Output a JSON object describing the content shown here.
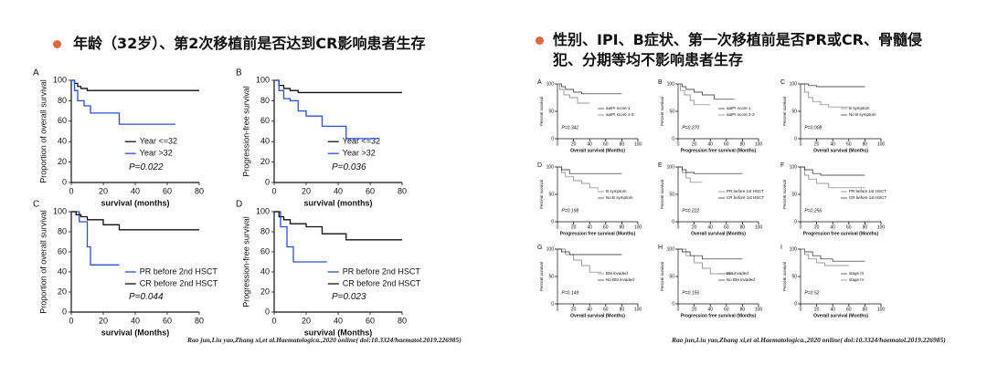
{
  "headings": [
    "年龄（32岁）、第2次移植前是否达到CR影响患者生存",
    "性别、IPI、B症状、第一次移植前是否PR或CR、骨髓侵犯、分期等均不影响患者生存"
  ],
  "citations": [
    "Rao jun,Liu yao,Zhang xi,et al.Haematologica.,2020 online( doi:10.3324/haematol.2019.226985)",
    "Rao jun,Liu yao,Zhang xi,et al.Haematologica.,2020 online( doi:10.3324/haematol.2019.226985)"
  ],
  "chart_data": [
    {
      "type": "step",
      "panel": "A",
      "ylabel": "Proportion of overall survival",
      "xlabel": "survival (months)",
      "annotation": "P=0.022",
      "xlim": [
        0,
        80
      ],
      "xticks": [
        0,
        20,
        40,
        60,
        80
      ],
      "ylim": [
        0,
        100
      ],
      "yticks": [
        0,
        20,
        40,
        60,
        80,
        100
      ],
      "series": [
        {
          "name": "Year <=32",
          "color": "#111111",
          "x": [
            0,
            2,
            4,
            6,
            10,
            80
          ],
          "values": [
            100,
            97,
            94,
            92,
            90,
            90
          ]
        },
        {
          "name": "Year >32",
          "color": "#2b4fd8",
          "x": [
            0,
            2,
            4,
            8,
            12,
            30,
            65
          ],
          "values": [
            100,
            90,
            80,
            75,
            68,
            57,
            57
          ]
        }
      ]
    },
    {
      "type": "step",
      "panel": "B",
      "ylabel": "Progression-free survival",
      "xlabel": "survival (months)",
      "annotation": "P=0.036",
      "xlim": [
        0,
        80
      ],
      "xticks": [
        0,
        20,
        40,
        60,
        80
      ],
      "ylim": [
        0,
        100
      ],
      "yticks": [
        0,
        20,
        40,
        60,
        80,
        100
      ],
      "series": [
        {
          "name": "Year <=32",
          "color": "#111111",
          "x": [
            0,
            3,
            6,
            10,
            15,
            80
          ],
          "values": [
            100,
            95,
            92,
            90,
            88,
            88
          ]
        },
        {
          "name": "Year >32",
          "color": "#2b4fd8",
          "x": [
            0,
            3,
            6,
            10,
            15,
            20,
            30,
            45,
            65
          ],
          "values": [
            100,
            90,
            82,
            80,
            70,
            65,
            55,
            43,
            43
          ]
        }
      ]
    },
    {
      "type": "step",
      "panel": "C",
      "ylabel": "Proportion of overall survival",
      "xlabel": "survival (Months)",
      "annotation": "P=0.044",
      "xlim": [
        0,
        80
      ],
      "xticks": [
        0,
        20,
        40,
        60,
        80
      ],
      "ylim": [
        0,
        100
      ],
      "yticks": [
        0,
        20,
        40,
        60,
        80,
        100
      ],
      "series": [
        {
          "name": "PR before 2nd HSCT",
          "color": "#2b4fd8",
          "x": [
            0,
            5,
            10,
            12,
            30
          ],
          "values": [
            100,
            90,
            65,
            47,
            47
          ]
        },
        {
          "name": "CR before 2nd HSCT",
          "color": "#111111",
          "x": [
            0,
            3,
            6,
            10,
            20,
            30,
            80
          ],
          "values": [
            100,
            97,
            95,
            92,
            87,
            82,
            82
          ]
        }
      ]
    },
    {
      "type": "step",
      "panel": "D",
      "ylabel": "Progression-free survival",
      "xlabel": "survival (Months)",
      "annotation": "P=0.023",
      "xlim": [
        0,
        80
      ],
      "xticks": [
        0,
        20,
        40,
        60,
        80
      ],
      "ylim": [
        0,
        100
      ],
      "yticks": [
        0,
        20,
        40,
        60,
        80,
        100
      ],
      "series": [
        {
          "name": "PR before 2nd HSCT",
          "color": "#2b4fd8",
          "x": [
            0,
            4,
            8,
            12,
            33
          ],
          "values": [
            100,
            85,
            65,
            50,
            50
          ]
        },
        {
          "name": "CR before 2nd HSCT",
          "color": "#111111",
          "x": [
            0,
            3,
            6,
            10,
            20,
            30,
            45,
            80
          ],
          "values": [
            100,
            95,
            92,
            88,
            85,
            78,
            72,
            72
          ]
        }
      ]
    },
    {
      "type": "step",
      "panel": "A",
      "ylabel": "Percent survival",
      "xlabel": "Overall survival (Months)",
      "annotation": "P=0.341",
      "xlim": [
        0,
        100
      ],
      "xticks": [
        0,
        20,
        40,
        60,
        80,
        100
      ],
      "ylim": [
        0,
        100
      ],
      "yticks": [
        0,
        50,
        100
      ],
      "series": [
        {
          "name": "aaIPI score 1",
          "color": "#222222",
          "x": [
            0,
            5,
            10,
            20,
            30,
            80
          ],
          "values": [
            100,
            95,
            90,
            85,
            82,
            82
          ]
        },
        {
          "name": "aaIPI score 2-3",
          "color": "#777777",
          "x": [
            0,
            3,
            8,
            15,
            25,
            40
          ],
          "values": [
            100,
            90,
            80,
            75,
            65,
            65
          ]
        }
      ]
    },
    {
      "type": "step",
      "panel": "B",
      "ylabel": "Percent survival",
      "xlabel": "Progression free survival (Months)",
      "annotation": "P=0.270",
      "xlim": [
        0,
        100
      ],
      "xticks": [
        0,
        20,
        40,
        60,
        80,
        100
      ],
      "ylim": [
        0,
        100
      ],
      "yticks": [
        0,
        50,
        100
      ],
      "series": [
        {
          "name": "aaIPI score 1",
          "color": "#222222",
          "x": [
            0,
            5,
            10,
            20,
            30,
            45,
            70
          ],
          "values": [
            100,
            95,
            90,
            85,
            80,
            72,
            72
          ]
        },
        {
          "name": "aaIPI score 2-3",
          "color": "#777777",
          "x": [
            0,
            3,
            8,
            15,
            20,
            40
          ],
          "values": [
            100,
            88,
            80,
            70,
            62,
            62
          ]
        }
      ]
    },
    {
      "type": "step",
      "panel": "C",
      "ylabel": "Percent survival",
      "xlabel": "Overall survival (Months)",
      "annotation": "P=0.008",
      "xlim": [
        0,
        100
      ],
      "xticks": [
        0,
        20,
        40,
        60,
        80,
        100
      ],
      "ylim": [
        0,
        100
      ],
      "yticks": [
        0,
        50,
        100
      ],
      "series": [
        {
          "name": "B symptom",
          "color": "#777777",
          "x": [
            0,
            5,
            10,
            15,
            25,
            35,
            60
          ],
          "values": [
            100,
            85,
            75,
            68,
            62,
            58,
            58
          ]
        },
        {
          "name": "No B symptom",
          "color": "#222222",
          "x": [
            0,
            10,
            20,
            80
          ],
          "values": [
            100,
            97,
            95,
            95
          ]
        }
      ]
    },
    {
      "type": "step",
      "panel": "D",
      "ylabel": "Percent survival",
      "xlabel": "Progression free survival (Months)",
      "annotation": "P=0.198",
      "xlim": [
        0,
        100
      ],
      "xticks": [
        0,
        20,
        40,
        60,
        80,
        100
      ],
      "ylim": [
        0,
        100
      ],
      "yticks": [
        0,
        50,
        100
      ],
      "series": [
        {
          "name": "B symptom",
          "color": "#777777",
          "x": [
            0,
            5,
            10,
            20,
            30,
            40,
            50
          ],
          "values": [
            100,
            90,
            82,
            75,
            70,
            62,
            58
          ]
        },
        {
          "name": "No B symptom",
          "color": "#222222",
          "x": [
            0,
            5,
            15,
            80
          ],
          "values": [
            100,
            95,
            88,
            88
          ]
        }
      ]
    },
    {
      "type": "step",
      "panel": "E",
      "ylabel": "Percent survival",
      "xlabel": "Overall survival (Months)",
      "annotation": "P=0.222",
      "xlim": [
        0,
        100
      ],
      "xticks": [
        0,
        20,
        40,
        60,
        80,
        100
      ],
      "ylim": [
        0,
        100
      ],
      "yticks": [
        0,
        50,
        100
      ],
      "series": [
        {
          "name": "PR before 1st HSCT",
          "color": "#777777",
          "x": [
            0,
            5,
            10,
            15,
            30
          ],
          "values": [
            100,
            90,
            80,
            72,
            72
          ]
        },
        {
          "name": "CR before 1st HSCT",
          "color": "#222222",
          "x": [
            0,
            5,
            10,
            20,
            80
          ],
          "values": [
            100,
            95,
            90,
            88,
            88
          ]
        }
      ]
    },
    {
      "type": "step",
      "panel": "F",
      "ylabel": "Percent survival",
      "xlabel": "Progression free survival (Months)",
      "annotation": "P=0.256",
      "xlim": [
        0,
        100
      ],
      "xticks": [
        0,
        20,
        40,
        60,
        80,
        100
      ],
      "ylim": [
        0,
        100
      ],
      "yticks": [
        0,
        50,
        100
      ],
      "series": [
        {
          "name": "PR before 1st HSCT",
          "color": "#777777",
          "x": [
            0,
            5,
            10,
            20,
            35,
            80
          ],
          "values": [
            100,
            85,
            78,
            70,
            62,
            62
          ]
        },
        {
          "name": "CR before 1st HSCT",
          "color": "#222222",
          "x": [
            0,
            5,
            15,
            25,
            80
          ],
          "values": [
            100,
            95,
            88,
            85,
            85
          ]
        }
      ]
    },
    {
      "type": "step",
      "panel": "G",
      "ylabel": "Percent survival",
      "xlabel": "Overall survival (Months)",
      "annotation": "P=0.149",
      "xlim": [
        0,
        100
      ],
      "xticks": [
        0,
        20,
        40,
        60,
        80,
        100
      ],
      "ylim": [
        0,
        100
      ],
      "yticks": [
        0,
        50,
        100
      ],
      "series": [
        {
          "name": "BM invaded",
          "color": "#777777",
          "x": [
            0,
            10,
            20,
            30,
            40,
            55
          ],
          "values": [
            100,
            90,
            80,
            70,
            58,
            58
          ]
        },
        {
          "name": "No BM invaded",
          "color": "#222222",
          "x": [
            0,
            5,
            15,
            80
          ],
          "values": [
            100,
            95,
            90,
            90
          ]
        }
      ]
    },
    {
      "type": "step",
      "panel": "H",
      "ylabel": "Percent survival",
      "xlabel": "Progression free survival (Months)",
      "annotation": "P=0.156",
      "xlim": [
        0,
        100
      ],
      "xticks": [
        0,
        20,
        40,
        60,
        80,
        100
      ],
      "ylim": [
        0,
        100
      ],
      "yticks": [
        0,
        50,
        100
      ],
      "series": [
        {
          "name": "BM invaded",
          "color": "#777777",
          "x": [
            0,
            10,
            20,
            30,
            40,
            70
          ],
          "values": [
            100,
            88,
            75,
            65,
            55,
            55
          ]
        },
        {
          "name": "No BM invaded",
          "color": "#222222",
          "x": [
            0,
            5,
            15,
            30,
            80
          ],
          "values": [
            100,
            95,
            88,
            82,
            82
          ]
        }
      ]
    },
    {
      "type": "step",
      "panel": "I",
      "ylabel": "Percent survival",
      "xlabel": "Overall survival (Months)",
      "annotation": "P=0.52",
      "xlim": [
        0,
        100
      ],
      "xticks": [
        0,
        20,
        40,
        60,
        80,
        100
      ],
      "ylim": [
        0,
        100
      ],
      "yticks": [
        0,
        50,
        100
      ],
      "series": [
        {
          "name": "stage III",
          "color": "#222222",
          "x": [
            0,
            5,
            15,
            25,
            40,
            80
          ],
          "values": [
            100,
            95,
            88,
            82,
            78,
            78
          ]
        },
        {
          "name": "stage IV",
          "color": "#777777",
          "x": [
            0,
            5,
            10,
            20,
            30,
            60
          ],
          "values": [
            100,
            90,
            82,
            75,
            70,
            70
          ]
        }
      ]
    }
  ]
}
